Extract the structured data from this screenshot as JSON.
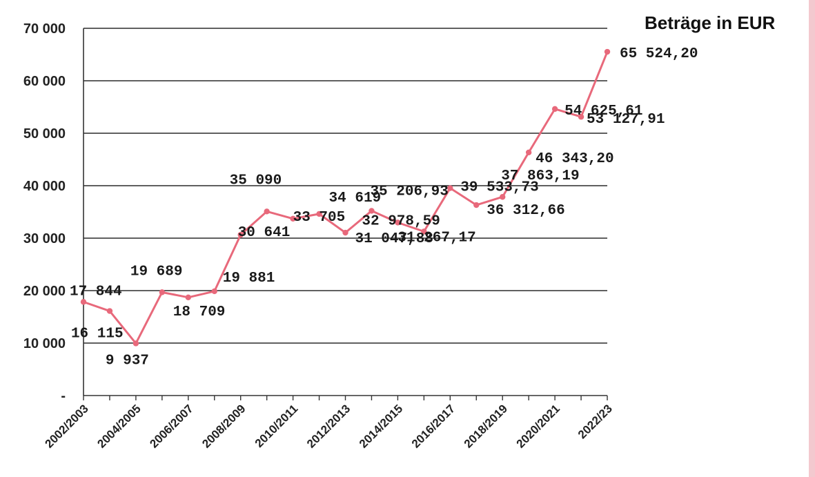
{
  "colors": {
    "line": "#e8697b",
    "grid": "#2a2a2a",
    "text": "#222222"
  },
  "chart_data": {
    "type": "line",
    "title": "Beträge in EUR",
    "xlabel": "",
    "ylabel": "",
    "ylim": [
      0,
      70000
    ],
    "y_ticks": [
      {
        "value": 0,
        "label": "-"
      },
      {
        "value": 10000,
        "label": "10 000"
      },
      {
        "value": 20000,
        "label": "20 000"
      },
      {
        "value": 30000,
        "label": "30 000"
      },
      {
        "value": 40000,
        "label": "40 000"
      },
      {
        "value": 50000,
        "label": "50 000"
      },
      {
        "value": 60000,
        "label": "60 000"
      },
      {
        "value": 70000,
        "label": "70 000"
      }
    ],
    "x_tick_labels": [
      "2002/2003",
      "2004/2005",
      "2006/2007",
      "2008/2009",
      "2010/2011",
      "2012/2013",
      "2014/2015",
      "2016/2017",
      "2018/2019",
      "2020/2021",
      "2022/23"
    ],
    "grid": true,
    "series": [
      {
        "values": [
          17844,
          16115,
          9937,
          19689,
          18709,
          19881,
          30641,
          35090,
          33705,
          34619,
          31047.88,
          35206.93,
          32978.59,
          31267.17,
          39533.73,
          36312.66,
          37863.19,
          46343.2,
          54625.61,
          53127.91,
          65524.2
        ],
        "labels": [
          "17 844",
          "16 115",
          "9 937",
          "19 689",
          "18 709",
          "19 881",
          "30 641",
          "35 090",
          "33 705",
          "34 619",
          "31 047,88",
          "35 206,93",
          "32 978,59",
          "31 267,17",
          "39 533,73",
          "36 312,66",
          "37 863,19",
          "46 343,20",
          "54 625,61",
          "53 127,91",
          "65 524,20"
        ]
      }
    ]
  }
}
